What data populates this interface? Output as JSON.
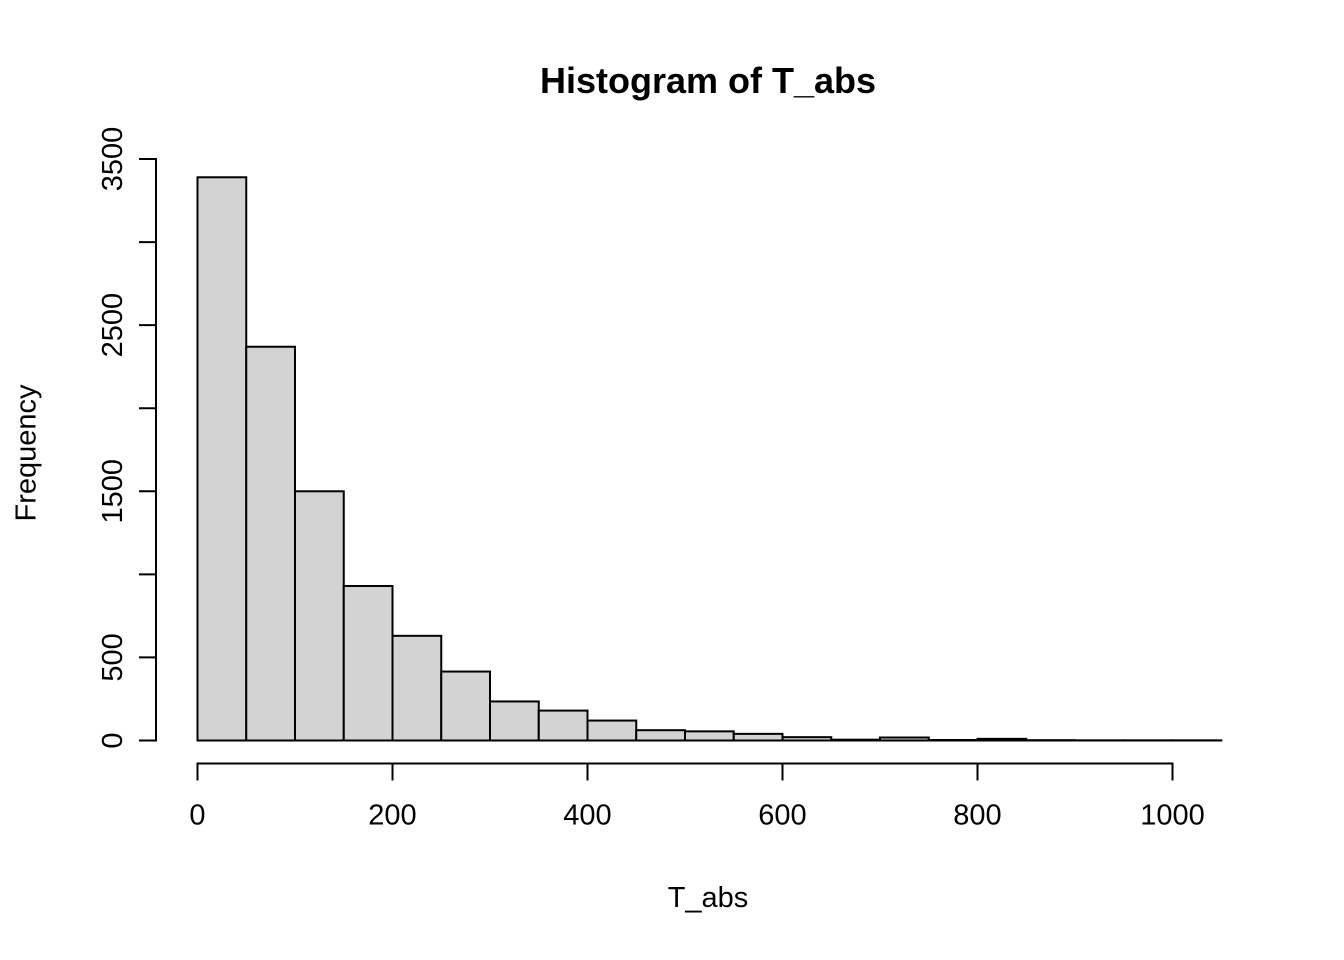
{
  "chart_data": {
    "type": "bar",
    "subtype": "histogram",
    "title": "Histogram of T_abs",
    "xlabel": "T_abs",
    "ylabel": "Frequency",
    "bin_start": 0,
    "bin_width": 50,
    "counts": [
      3390,
      2370,
      1500,
      930,
      630,
      415,
      235,
      180,
      120,
      62,
      55,
      40,
      20,
      5,
      18,
      3,
      10,
      2,
      1,
      1,
      1
    ],
    "bin_edges": [
      0,
      50,
      100,
      150,
      200,
      250,
      300,
      350,
      400,
      450,
      500,
      550,
      600,
      650,
      700,
      750,
      800,
      850,
      900,
      950,
      1000,
      1050
    ],
    "x_ticks": [
      0,
      200,
      400,
      600,
      800,
      1000
    ],
    "y_ticks": [
      0,
      500,
      1000,
      1500,
      2000,
      2500,
      3000,
      3500
    ],
    "y_labeled_ticks": [
      0,
      500,
      1500,
      2500,
      3500
    ],
    "xlim": [
      0,
      1050
    ],
    "ylim": [
      0,
      3500
    ],
    "grid": false,
    "legend": false,
    "colors": {
      "bar_fill": "#d3d3d3",
      "bar_stroke": "#000000",
      "axis": "#000000",
      "text": "#000000",
      "background": "#ffffff"
    }
  }
}
